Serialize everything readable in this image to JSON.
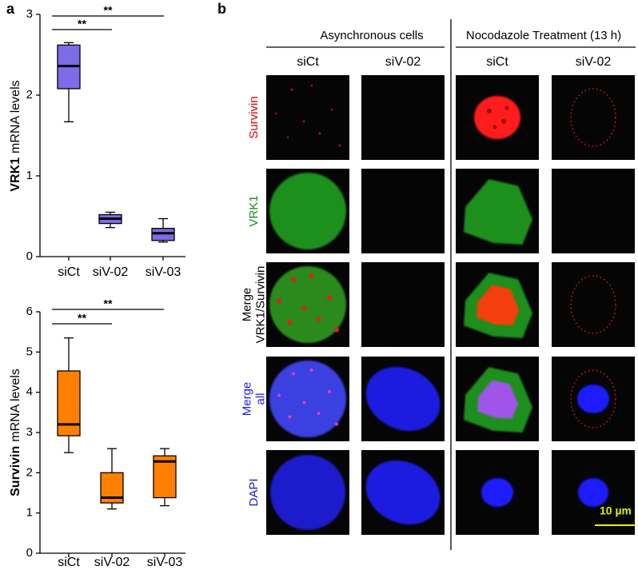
{
  "chart_data": [
    {
      "type": "box",
      "categories": [
        "siCt",
        "siV-02",
        "siV-03"
      ],
      "color": "#7d6be8",
      "boxes": [
        {
          "min": 1.67,
          "q1": 2.08,
          "median": 2.36,
          "q3": 2.62,
          "max": 2.65
        },
        {
          "min": 0.36,
          "q1": 0.41,
          "median": 0.47,
          "q3": 0.52,
          "max": 0.55
        },
        {
          "min": 0.18,
          "q1": 0.2,
          "median": 0.29,
          "q3": 0.35,
          "max": 0.47
        }
      ],
      "ylim": [
        0,
        3
      ],
      "yticks": [
        0,
        1,
        2,
        3
      ],
      "ylabel_bold": "VRK1",
      "ylabel": "mRNA levels",
      "annotations": [
        "**",
        "**"
      ]
    },
    {
      "type": "box",
      "categories": [
        "siCt",
        "siV-02",
        "siV-03"
      ],
      "color": "#ff8000",
      "boxes": [
        {
          "min": 2.5,
          "q1": 2.92,
          "median": 3.2,
          "q3": 4.53,
          "max": 5.35
        },
        {
          "min": 1.1,
          "q1": 1.25,
          "median": 1.38,
          "q3": 2.0,
          "max": 2.6
        },
        {
          "min": 1.18,
          "q1": 1.38,
          "median": 2.28,
          "q3": 2.42,
          "max": 2.6
        }
      ],
      "ylim": [
        0,
        6
      ],
      "yticks": [
        0,
        1,
        2,
        3,
        4,
        5,
        6
      ],
      "ylabel_bold": "Survivin",
      "ylabel": "mRNA levels",
      "annotations": [
        "**",
        "**"
      ]
    }
  ],
  "figure": {
    "panel_labels": [
      "a",
      "b"
    ],
    "column_groups": [
      "Asynchronous cells",
      "Nocodazole Treatment (13 h)"
    ],
    "columns": [
      "siCt",
      "siV-02",
      "siCt",
      "siV-02"
    ],
    "rows": [
      [
        "Survivin"
      ],
      [
        "VRK1"
      ],
      [
        "Merge",
        "VRK1/Survivin"
      ],
      [
        "Merge",
        "all"
      ],
      [
        "DAPI"
      ]
    ],
    "scale_bar": "10 µm"
  }
}
